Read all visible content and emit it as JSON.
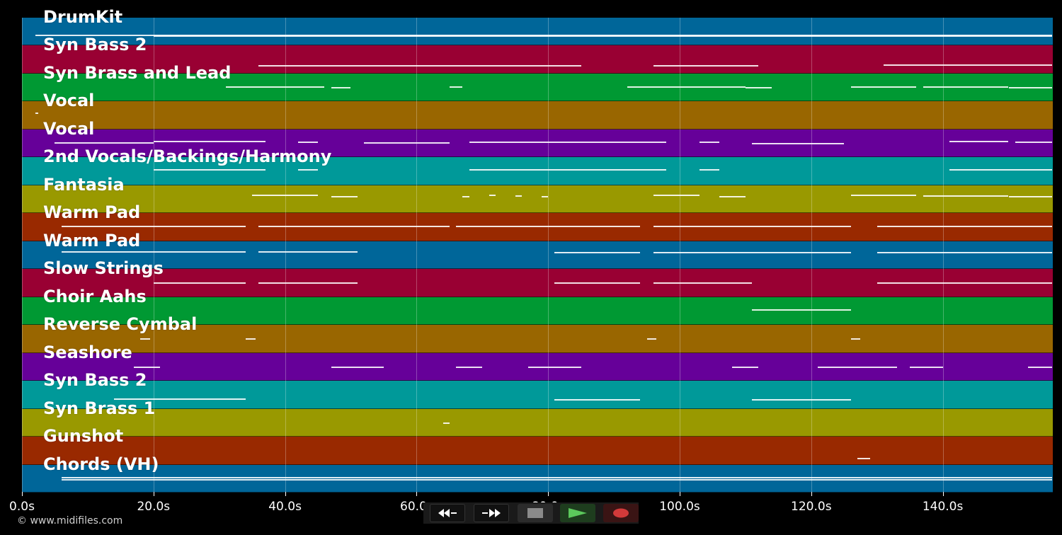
{
  "lanes": [
    {
      "label": "DrumKit",
      "color": "#006699"
    },
    {
      "label": "Syn Bass 2",
      "color": "#990033"
    },
    {
      "label": "Syn Brass and Lead",
      "color": "#009933"
    },
    {
      "label": "Vocal",
      "color": "#996600"
    },
    {
      "label": "Vocal",
      "color": "#660099"
    },
    {
      "label": "2nd Vocals/Backings/Harmony",
      "color": "#009999"
    },
    {
      "label": "Fantasia",
      "color": "#999900"
    },
    {
      "label": "Warm Pad",
      "color": "#992900"
    },
    {
      "label": "Warm Pad",
      "color": "#006699"
    },
    {
      "label": "Slow Strings",
      "color": "#990033"
    },
    {
      "label": "Choir Aahs",
      "color": "#009933"
    },
    {
      "label": "Reverse Cymbal",
      "color": "#996600"
    },
    {
      "label": "Seashore",
      "color": "#660099"
    },
    {
      "label": "Syn Bass 2",
      "color": "#009999"
    },
    {
      "label": "Syn Brass 1",
      "color": "#999900"
    },
    {
      "label": "Gunshot",
      "color": "#992900"
    },
    {
      "label": "Chords (VH)",
      "color": "#006699"
    }
  ],
  "timeline": {
    "ticks": [
      "0.0s",
      "20.0s",
      "40.0s",
      "60.0s",
      "80.0s",
      "100.0s",
      "120.0s",
      "140.0s"
    ]
  },
  "copyright": "© www.midifiles.com",
  "transport": {
    "rewind": "rewind-icon",
    "fast_forward": "fast-forward-icon",
    "stop": "stop-icon",
    "play": "play-icon",
    "record": "record-icon"
  }
}
